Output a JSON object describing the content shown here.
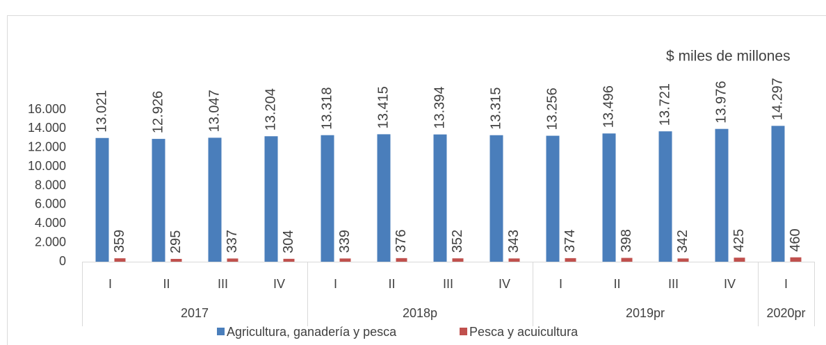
{
  "chart_data": {
    "type": "bar",
    "annotation": "$ miles de millones",
    "categories": [
      "I",
      "II",
      "III",
      "IV",
      "I",
      "II",
      "III",
      "IV",
      "I",
      "II",
      "III",
      "IV",
      "I"
    ],
    "category_groups": [
      "2017",
      null,
      null,
      null,
      "2018p",
      null,
      null,
      null,
      "2019pr",
      null,
      null,
      null,
      "2020pr"
    ],
    "series": [
      {
        "name": "Agricultura, ganadería y pesca",
        "color": "#4a7ebb",
        "values": [
          13021,
          12926,
          13047,
          13204,
          13318,
          13415,
          13394,
          13315,
          13256,
          13496,
          13721,
          13976,
          14297
        ],
        "value_labels": [
          "13.021",
          "12.926",
          "13.047",
          "13.204",
          "13.318",
          "13.415",
          "13.394",
          "13.315",
          "13.256",
          "13.496",
          "13.721",
          "13.976",
          "14.297"
        ]
      },
      {
        "name": "Pesca y acuicultura",
        "color": "#c0504d",
        "values": [
          359,
          295,
          337,
          304,
          339,
          376,
          352,
          343,
          374,
          398,
          342,
          425,
          460
        ]
      }
    ],
    "ylim": [
      0,
      16000
    ],
    "yticks": [
      0,
      {
        "value": 2000,
        "label": "2.000"
      },
      {
        "value": 4000,
        "label": "4.000"
      },
      {
        "value": 6000,
        "label": "6.000"
      },
      {
        "value": 8000,
        "label": "8.000"
      },
      {
        "value": 10000,
        "label": "10.000"
      },
      {
        "value": 12000,
        "label": "12.000"
      },
      {
        "value": 14000,
        "label": "14.000"
      },
      {
        "value": 16000,
        "label": "16.000"
      }
    ],
    "legend": "bottom"
  }
}
